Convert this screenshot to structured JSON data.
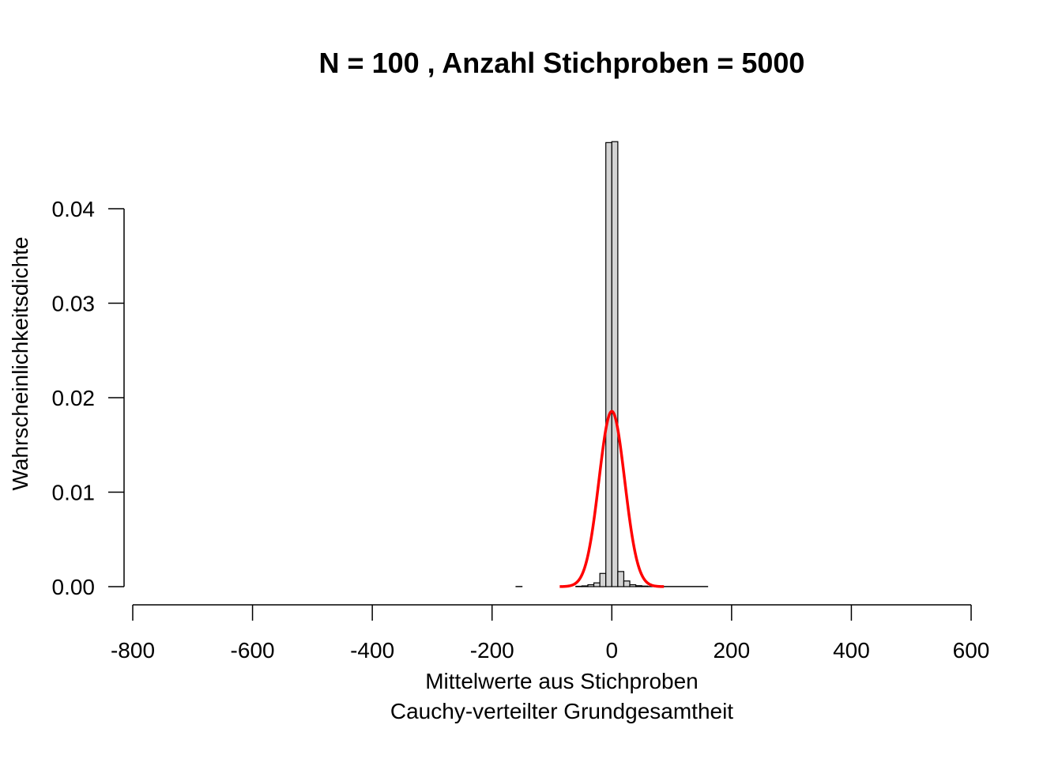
{
  "chart_data": {
    "type": "bar",
    "title": "N = 100 , Anzahl Stichproben = 5000",
    "xlabel_line1": "Mittelwerte aus Stichproben",
    "xlabel_line2": "Cauchy-verteilter Grundgesamtheit",
    "ylabel": "Wahrscheinlichkeitsdichte",
    "xlim": [
      -800,
      600
    ],
    "ylim": [
      0,
      0.04
    ],
    "x_ticks": [
      -800,
      -600,
      -400,
      -200,
      0,
      200,
      400,
      600
    ],
    "x_tick_labels": [
      "-800",
      "-600",
      "-400",
      "-200",
      "0",
      "200",
      "400",
      "600"
    ],
    "y_ticks": [
      0,
      0.01,
      0.02,
      0.03,
      0.04
    ],
    "y_tick_labels": [
      "0.00",
      "0.01",
      "0.02",
      "0.03",
      "0.04"
    ],
    "histogram": {
      "name": "histogram",
      "bin_width": 10,
      "fill": "#d3d3d3",
      "stroke": "#000000",
      "bins": [
        {
          "x0": -760,
          "x1": -160,
          "density": 0.0
        },
        {
          "x0": -160,
          "x1": -150,
          "density": 2e-05
        },
        {
          "x0": -150,
          "x1": -60,
          "density": 0.0
        },
        {
          "x0": -60,
          "x1": -50,
          "density": 4e-05
        },
        {
          "x0": -50,
          "x1": -40,
          "density": 8e-05
        },
        {
          "x0": -40,
          "x1": -30,
          "density": 0.0002
        },
        {
          "x0": -30,
          "x1": -20,
          "density": 0.0004
        },
        {
          "x0": -20,
          "x1": -10,
          "density": 0.0014
        },
        {
          "x0": -10,
          "x1": 0,
          "density": 0.047
        },
        {
          "x0": 0,
          "x1": 10,
          "density": 0.0471
        },
        {
          "x0": 10,
          "x1": 20,
          "density": 0.0016
        },
        {
          "x0": 20,
          "x1": 30,
          "density": 0.0006
        },
        {
          "x0": 30,
          "x1": 40,
          "density": 0.0002
        },
        {
          "x0": 40,
          "x1": 50,
          "density": 0.0001
        },
        {
          "x0": 50,
          "x1": 60,
          "density": 6e-05
        },
        {
          "x0": 60,
          "x1": 160,
          "density": 2e-05
        },
        {
          "x0": 160,
          "x1": 590,
          "density": 0.0
        }
      ]
    },
    "series": [
      {
        "type": "line",
        "color": "#ff0000",
        "distribution": "normal",
        "mean": 0,
        "sd": 21.5,
        "x_range": [
          -87,
          87
        ]
      }
    ]
  }
}
